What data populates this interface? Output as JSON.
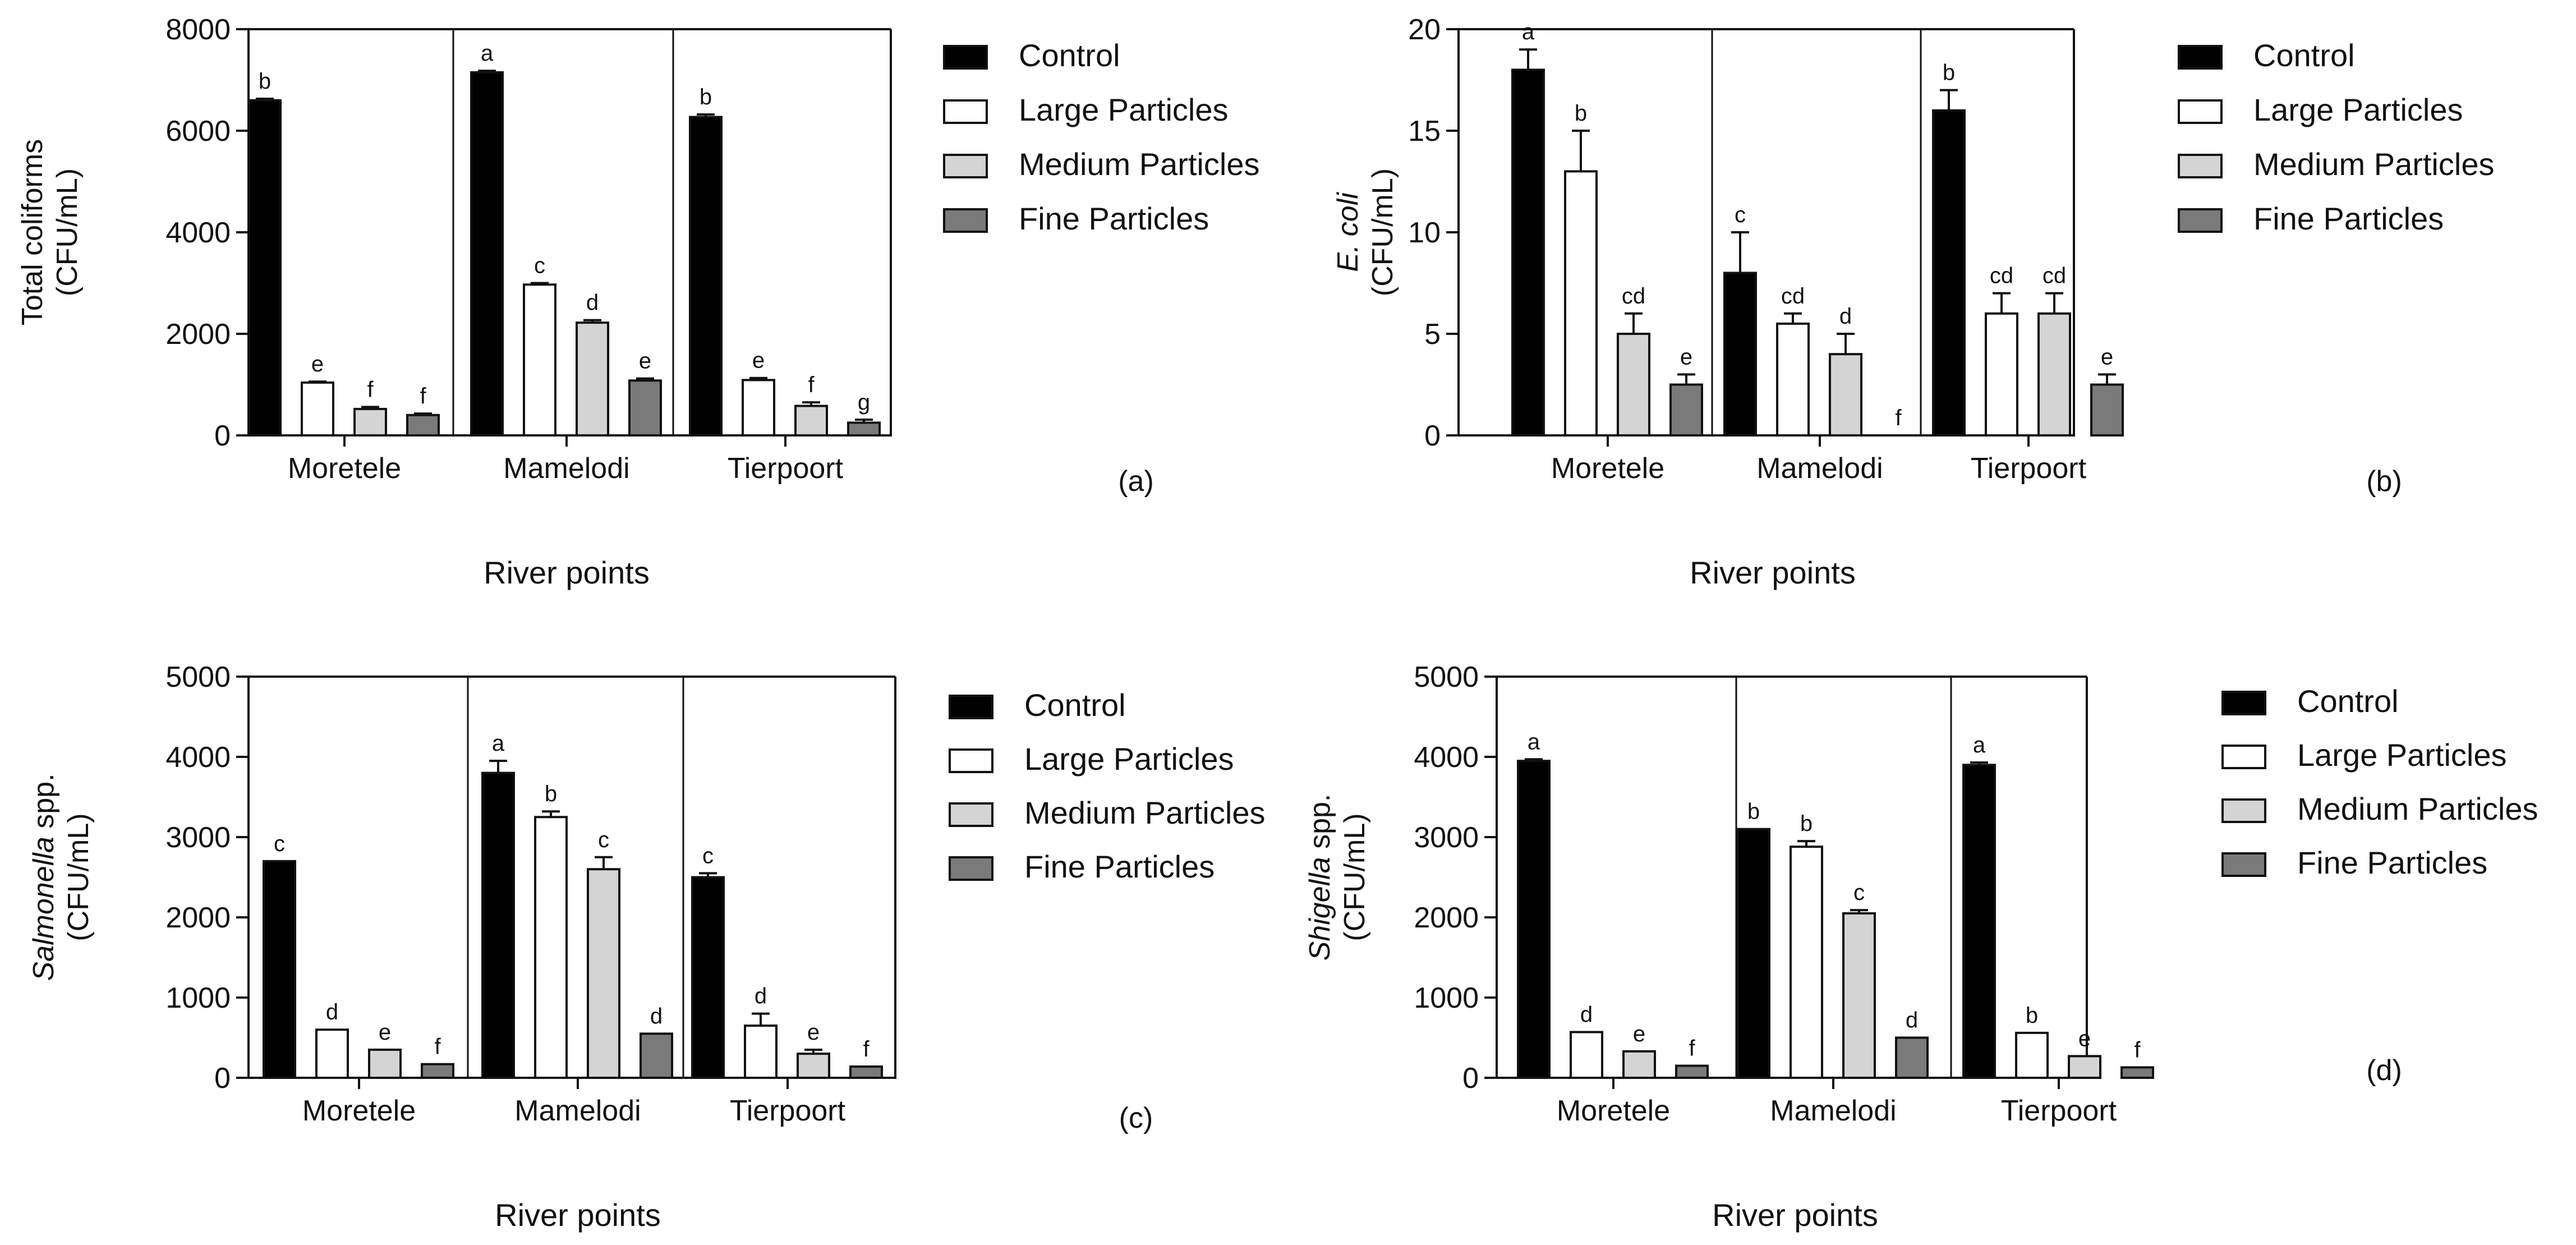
{
  "colors": {
    "axis": "#111111",
    "control": "#000000",
    "large": "#ffffff",
    "medium": "#d4d4d4",
    "fine": "#7a7a7a"
  },
  "legend_entries": [
    "Control",
    "Large Particles",
    "Medium Particles",
    "Fine Particles"
  ],
  "chart_data": [
    {
      "panel": "(a)",
      "type": "bar",
      "ylabel_lines": [
        "Total coliforms",
        "(CFU/mL)"
      ],
      "ylabel_italic_part": "",
      "xlabel": "River points",
      "categories": [
        "Moretele",
        "Mamelodi",
        "Tierpoort"
      ],
      "ylim": [
        0,
        8000
      ],
      "yticks": [
        0,
        2000,
        4000,
        6000,
        8000
      ],
      "series": [
        {
          "name": "Control",
          "values": [
            6600,
            7150,
            6270
          ],
          "errors": [
            30,
            30,
            50
          ],
          "letters": [
            "b",
            "a",
            "b"
          ]
        },
        {
          "name": "Large Particles",
          "values": [
            1040,
            2970,
            1090
          ],
          "errors": [
            20,
            30,
            40
          ],
          "letters": [
            "e",
            "c",
            "e"
          ]
        },
        {
          "name": "Medium Particles",
          "values": [
            520,
            2220,
            580
          ],
          "errors": [
            40,
            50,
            70
          ],
          "letters": [
            "f",
            "d",
            "f"
          ]
        },
        {
          "name": "Fine Particles",
          "values": [
            400,
            1080,
            250
          ],
          "errors": [
            30,
            40,
            60
          ],
          "letters": [
            "f",
            "e",
            "g"
          ]
        }
      ]
    },
    {
      "panel": "(b)",
      "type": "bar",
      "ylabel_lines": [
        "E. coli",
        "(CFU/mL)"
      ],
      "ylabel_italic_part": "E. coli",
      "xlabel": "River points",
      "categories": [
        "Moretele",
        "Mamelodi",
        "Tierpoort"
      ],
      "ylim": [
        0,
        20
      ],
      "yticks": [
        0,
        5,
        10,
        15,
        20
      ],
      "series": [
        {
          "name": "Control",
          "values": [
            18,
            8,
            16
          ],
          "errors": [
            1,
            2,
            1
          ],
          "letters": [
            "a",
            "c",
            "b"
          ]
        },
        {
          "name": "Large Particles",
          "values": [
            13,
            5.5,
            6
          ],
          "errors": [
            2,
            0.5,
            1
          ],
          "letters": [
            "b",
            "cd",
            "cd"
          ]
        },
        {
          "name": "Medium Particles",
          "values": [
            5,
            4,
            6
          ],
          "errors": [
            1,
            1,
            1
          ],
          "letters": [
            "cd",
            "d",
            "cd"
          ]
        },
        {
          "name": "Fine Particles",
          "values": [
            2.5,
            0,
            2.5
          ],
          "errors": [
            0.5,
            0,
            0.5
          ],
          "letters": [
            "e",
            "f",
            "e"
          ]
        }
      ]
    },
    {
      "panel": "(c)",
      "type": "bar",
      "ylabel_lines": [
        "Salmonella spp.",
        "(CFU/mL)"
      ],
      "ylabel_italic_part": "Salmonella",
      "xlabel": "River points",
      "categories": [
        "Moretele",
        "Mamelodi",
        "Tierpoort"
      ],
      "ylim": [
        0,
        5000
      ],
      "yticks": [
        0,
        1000,
        2000,
        3000,
        4000,
        5000
      ],
      "series": [
        {
          "name": "Control",
          "values": [
            2700,
            3800,
            2500
          ],
          "errors": [
            0,
            150,
            50
          ],
          "letters": [
            "c",
            "a",
            "c"
          ]
        },
        {
          "name": "Large Particles",
          "values": [
            600,
            3250,
            650
          ],
          "errors": [
            0,
            70,
            150
          ],
          "letters": [
            "d",
            "b",
            "d"
          ]
        },
        {
          "name": "Medium Particles",
          "values": [
            350,
            2600,
            300
          ],
          "errors": [
            0,
            150,
            50
          ],
          "letters": [
            "e",
            "c",
            "e"
          ]
        },
        {
          "name": "Fine Particles",
          "values": [
            170,
            550,
            140
          ],
          "errors": [
            0,
            0,
            0
          ],
          "letters": [
            "f",
            "d",
            "f"
          ]
        }
      ]
    },
    {
      "panel": "(d)",
      "type": "bar",
      "ylabel_lines": [
        "Shigella spp.",
        "(CFU/mL)"
      ],
      "ylabel_italic_part": "Shigella",
      "xlabel": "River points",
      "categories": [
        "Moretele",
        "Mamelodi",
        "Tierpoort"
      ],
      "ylim": [
        0,
        5000
      ],
      "yticks": [
        0,
        1000,
        2000,
        3000,
        4000,
        5000
      ],
      "series": [
        {
          "name": "Control",
          "values": [
            3950,
            3100,
            3900
          ],
          "errors": [
            20,
            0,
            30
          ],
          "letters": [
            "a",
            "b",
            "a"
          ]
        },
        {
          "name": "Large Particles",
          "values": [
            570,
            2880,
            560
          ],
          "errors": [
            0,
            70,
            0
          ],
          "letters": [
            "d",
            "b",
            "b"
          ]
        },
        {
          "name": "Medium Particles",
          "values": [
            330,
            2050,
            270
          ],
          "errors": [
            0,
            40,
            0
          ],
          "letters": [
            "e",
            "c",
            "e"
          ]
        },
        {
          "name": "Fine Particles",
          "values": [
            150,
            500,
            130
          ],
          "errors": [
            0,
            0,
            0
          ],
          "letters": [
            "f",
            "d",
            "f"
          ]
        }
      ]
    }
  ]
}
